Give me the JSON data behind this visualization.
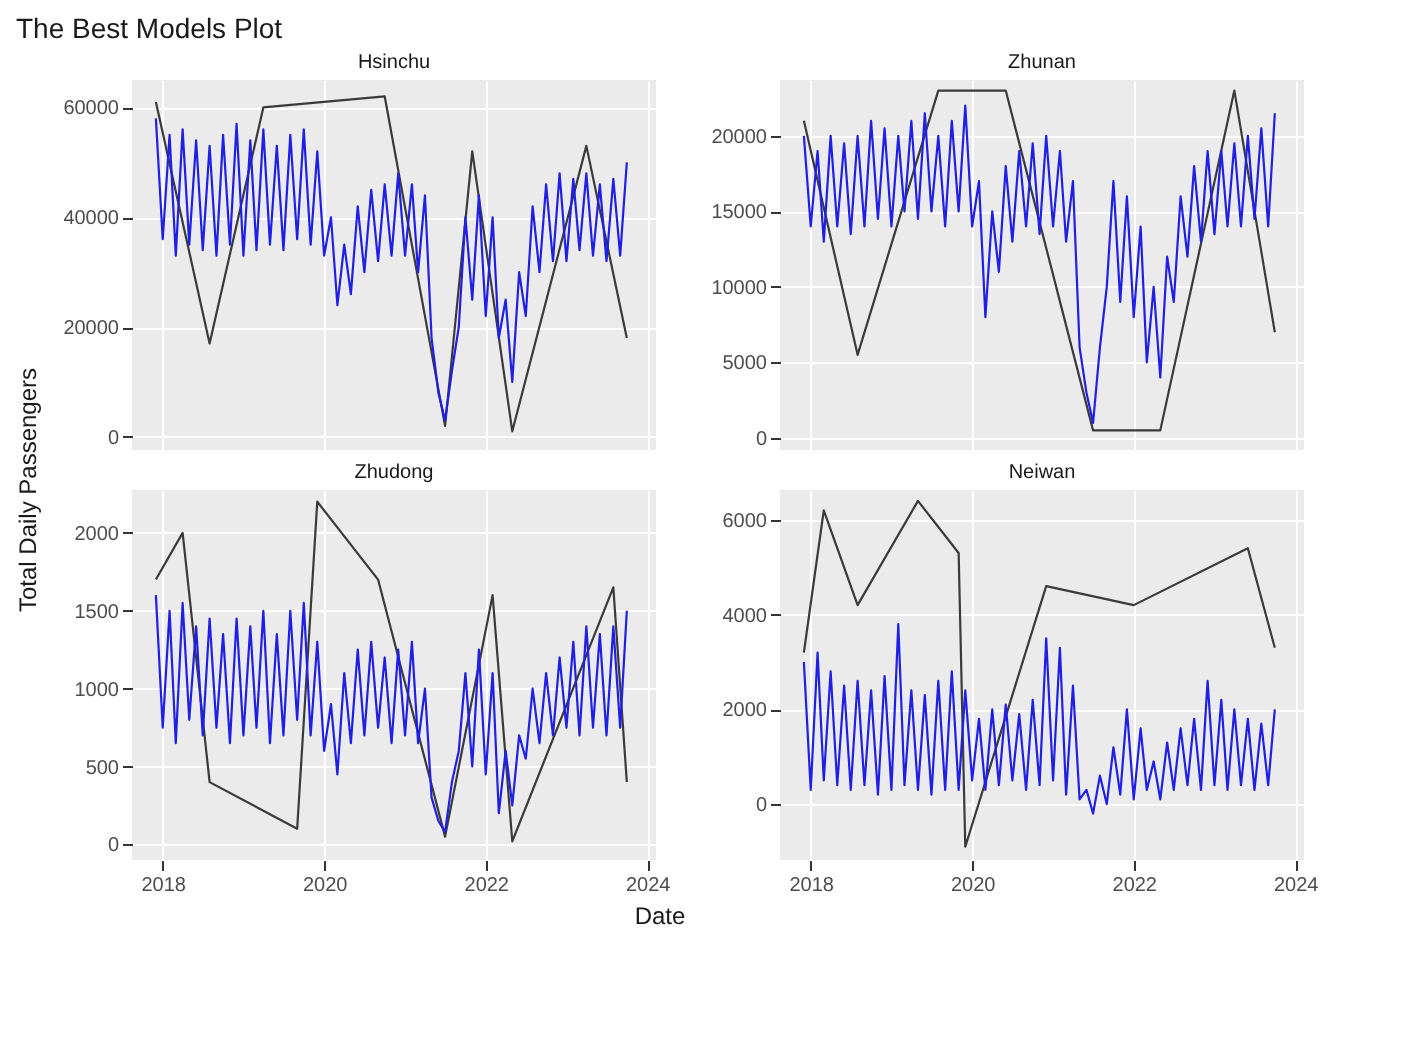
{
  "chart_data": [
    {
      "type": "line",
      "title": "The Best Models Plot",
      "subtitle": "Hsinchu",
      "ylabel": "Total Daily Passengers",
      "xlim": [
        "2017-08-15",
        "2024-02-10"
      ],
      "xticks": [
        {
          "value": "2018-01-01",
          "label": null
        },
        {
          "value": "2020-01-01",
          "label": null
        },
        {
          "value": "2022-01-01",
          "label": null
        },
        {
          "value": "2024-01-01",
          "label": null
        }
      ],
      "ylim": [
        -2400,
        65000
      ],
      "yticks": [
        0,
        20000,
        40000,
        60000
      ],
      "grid": true,
      "tick_labels": "y",
      "line_style": "solid",
      "marker": "none",
      "series": [
        {
          "color": "#3a3a3a",
          "x": [
            "2017-12",
            "2018-08",
            "2019-04",
            "2020-10",
            "2021-07",
            "2021-11",
            "2022-05",
            "2023-04",
            "2023-10"
          ],
          "values": [
            61000,
            17000,
            60000,
            62000,
            2000,
            52000,
            1000,
            53000,
            18000
          ]
        },
        {
          "color": "#1f1fe6",
          "values": [
            58000,
            36000,
            55000,
            33000,
            56000,
            35000,
            54000,
            34000,
            53000,
            33000,
            55000,
            35000,
            57000,
            33000,
            54000,
            34000,
            56000,
            35000,
            53000,
            34000,
            55000,
            36000,
            56000,
            35000,
            52000,
            33000,
            40000,
            24000,
            35000,
            26000,
            42000,
            30000,
            45000,
            32000,
            46000,
            33000,
            48000,
            33000,
            46000,
            30000,
            44000,
            18000,
            8000,
            3000,
            12000,
            20000,
            40000,
            25000,
            44000,
            22000,
            40000,
            18000,
            25000,
            10000,
            30000,
            22000,
            42000,
            30000,
            46000,
            32000,
            48000,
            32000,
            47000,
            34000,
            48000,
            33000,
            46000,
            32000,
            47000,
            33000,
            50000
          ]
        }
      ],
      "x": [
        "2017-12",
        "2018-01",
        "2018-02",
        "2018-03",
        "2018-04",
        "2018-05",
        "2018-06",
        "2018-07",
        "2018-08",
        "2018-09",
        "2018-10",
        "2018-11",
        "2018-12",
        "2019-01",
        "2019-02",
        "2019-03",
        "2019-04",
        "2019-05",
        "2019-06",
        "2019-07",
        "2019-08",
        "2019-09",
        "2019-10",
        "2019-11",
        "2019-12",
        "2020-01",
        "2020-02",
        "2020-03",
        "2020-04",
        "2020-05",
        "2020-06",
        "2020-07",
        "2020-08",
        "2020-09",
        "2020-10",
        "2020-11",
        "2020-12",
        "2021-01",
        "2021-02",
        "2021-03",
        "2021-04",
        "2021-05",
        "2021-06",
        "2021-07",
        "2021-08",
        "2021-09",
        "2021-10",
        "2021-11",
        "2021-12",
        "2022-01",
        "2022-02",
        "2022-03",
        "2022-04",
        "2022-05",
        "2022-06",
        "2022-07",
        "2022-08",
        "2022-09",
        "2022-10",
        "2022-11",
        "2022-12",
        "2023-01",
        "2023-02",
        "2023-03",
        "2023-04",
        "2023-05",
        "2023-06",
        "2023-07",
        "2023-08",
        "2023-09",
        "2023-10"
      ]
    },
    {
      "type": "line",
      "subtitle": "Zhunan",
      "xlim": [
        "2017-08-15",
        "2024-02-10"
      ],
      "xticks": [
        {
          "value": "2018-01-01",
          "label": null
        },
        {
          "value": "2020-01-01",
          "label": null
        },
        {
          "value": "2022-01-01",
          "label": null
        },
        {
          "value": "2024-01-01",
          "label": null
        }
      ],
      "ylim": [
        -800,
        23700
      ],
      "yticks": [
        0,
        5000,
        10000,
        15000,
        20000
      ],
      "grid": true,
      "tick_labels": "y",
      "line_style": "solid",
      "marker": "none",
      "series": [
        {
          "color": "#3a3a3a",
          "x": [
            "2017-12",
            "2018-08",
            "2019-08",
            "2020-06",
            "2021-07",
            "2022-05",
            "2023-04",
            "2023-10"
          ],
          "values": [
            21000,
            5500,
            23000,
            23000,
            500,
            500,
            23000,
            7000
          ]
        },
        {
          "color": "#1f1fe6",
          "values": [
            20000,
            14000,
            19000,
            13000,
            20000,
            14000,
            19500,
            13500,
            20000,
            14000,
            21000,
            14500,
            20500,
            14000,
            20000,
            15000,
            21000,
            14500,
            21500,
            15000,
            20000,
            14000,
            21000,
            15000,
            22000,
            14000,
            17000,
            8000,
            15000,
            11000,
            18000,
            13000,
            19000,
            14000,
            19500,
            13500,
            20000,
            14000,
            19000,
            13000,
            17000,
            6000,
            3000,
            1000,
            6000,
            10000,
            17000,
            9000,
            16000,
            8000,
            14000,
            5000,
            10000,
            4000,
            12000,
            9000,
            16000,
            12000,
            18000,
            13000,
            19000,
            13500,
            19000,
            14000,
            19500,
            14000,
            20000,
            14500,
            20500,
            14000,
            21500
          ]
        }
      ],
      "x": [
        "2017-12",
        "2018-01",
        "2018-02",
        "2018-03",
        "2018-04",
        "2018-05",
        "2018-06",
        "2018-07",
        "2018-08",
        "2018-09",
        "2018-10",
        "2018-11",
        "2018-12",
        "2019-01",
        "2019-02",
        "2019-03",
        "2019-04",
        "2019-05",
        "2019-06",
        "2019-07",
        "2019-08",
        "2019-09",
        "2019-10",
        "2019-11",
        "2019-12",
        "2020-01",
        "2020-02",
        "2020-03",
        "2020-04",
        "2020-05",
        "2020-06",
        "2020-07",
        "2020-08",
        "2020-09",
        "2020-10",
        "2020-11",
        "2020-12",
        "2021-01",
        "2021-02",
        "2021-03",
        "2021-04",
        "2021-05",
        "2021-06",
        "2021-07",
        "2021-08",
        "2021-09",
        "2021-10",
        "2021-11",
        "2021-12",
        "2022-01",
        "2022-02",
        "2022-03",
        "2022-04",
        "2022-05",
        "2022-06",
        "2022-07",
        "2022-08",
        "2022-09",
        "2022-10",
        "2022-11",
        "2022-12",
        "2023-01",
        "2023-02",
        "2023-03",
        "2023-04",
        "2023-05",
        "2023-06",
        "2023-07",
        "2023-08",
        "2023-09",
        "2023-10"
      ]
    },
    {
      "type": "line",
      "subtitle": "Zhudong",
      "xlabel": "Date",
      "xlim": [
        "2017-08-15",
        "2024-02-10"
      ],
      "xticks": [
        {
          "value": "2018-01-01",
          "label": "2018"
        },
        {
          "value": "2020-01-01",
          "label": "2020"
        },
        {
          "value": "2022-01-01",
          "label": "2022"
        },
        {
          "value": "2024-01-01",
          "label": "2024"
        }
      ],
      "ylim": [
        -100,
        2275
      ],
      "yticks": [
        0,
        500,
        1000,
        1500,
        2000
      ],
      "grid": true,
      "line_style": "solid",
      "marker": "none",
      "series": [
        {
          "color": "#3a3a3a",
          "x": [
            "2017-12",
            "2018-04",
            "2018-08",
            "2019-09",
            "2019-12",
            "2020-09",
            "2021-07",
            "2022-02",
            "2022-05",
            "2023-08",
            "2023-10"
          ],
          "values": [
            1700,
            2000,
            400,
            100,
            2200,
            1700,
            50,
            1600,
            20,
            1650,
            400
          ]
        },
        {
          "color": "#1f1fe6",
          "values": [
            1600,
            750,
            1500,
            650,
            1550,
            800,
            1400,
            700,
            1450,
            750,
            1350,
            650,
            1450,
            700,
            1400,
            750,
            1500,
            650,
            1350,
            700,
            1500,
            800,
            1550,
            700,
            1300,
            600,
            900,
            450,
            1100,
            650,
            1250,
            700,
            1300,
            750,
            1200,
            650,
            1250,
            700,
            1300,
            650,
            1000,
            300,
            150,
            80,
            400,
            600,
            1100,
            500,
            1250,
            450,
            1100,
            200,
            600,
            250,
            700,
            550,
            1000,
            650,
            1100,
            700,
            1200,
            750,
            1300,
            700,
            1400,
            750,
            1350,
            700,
            1400,
            750,
            1500
          ]
        }
      ],
      "x": [
        "2017-12",
        "2018-01",
        "2018-02",
        "2018-03",
        "2018-04",
        "2018-05",
        "2018-06",
        "2018-07",
        "2018-08",
        "2018-09",
        "2018-10",
        "2018-11",
        "2018-12",
        "2019-01",
        "2019-02",
        "2019-03",
        "2019-04",
        "2019-05",
        "2019-06",
        "2019-07",
        "2019-08",
        "2019-09",
        "2019-10",
        "2019-11",
        "2019-12",
        "2020-01",
        "2020-02",
        "2020-03",
        "2020-04",
        "2020-05",
        "2020-06",
        "2020-07",
        "2020-08",
        "2020-09",
        "2020-10",
        "2020-11",
        "2020-12",
        "2021-01",
        "2021-02",
        "2021-03",
        "2021-04",
        "2021-05",
        "2021-06",
        "2021-07",
        "2021-08",
        "2021-09",
        "2021-10",
        "2021-11",
        "2021-12",
        "2022-01",
        "2022-02",
        "2022-03",
        "2022-04",
        "2022-05",
        "2022-06",
        "2022-07",
        "2022-08",
        "2022-09",
        "2022-10",
        "2022-11",
        "2022-12",
        "2023-01",
        "2023-02",
        "2023-03",
        "2023-04",
        "2023-05",
        "2023-06",
        "2023-07",
        "2023-08",
        "2023-09",
        "2023-10"
      ]
    },
    {
      "type": "line",
      "subtitle": "Neiwan",
      "xlim": [
        "2017-08-15",
        "2024-02-10"
      ],
      "xticks": [
        {
          "value": "2018-01-01",
          "label": "2018"
        },
        {
          "value": "2020-01-01",
          "label": "2020"
        },
        {
          "value": "2022-01-01",
          "label": "2022"
        },
        {
          "value": "2024-01-01",
          "label": "2024"
        }
      ],
      "ylim": [
        -1180,
        6630
      ],
      "yticks": [
        0,
        2000,
        4000,
        6000
      ],
      "grid": true,
      "line_style": "solid",
      "marker": "none",
      "series": [
        {
          "color": "#3a3a3a",
          "x": [
            "2017-12",
            "2018-03",
            "2018-08",
            "2019-05",
            "2019-11",
            "2019-12",
            "2020-12",
            "2022-01",
            "2023-06",
            "2023-10"
          ],
          "values": [
            3200,
            6200,
            4200,
            6400,
            5300,
            -900,
            4600,
            4200,
            5400,
            3300
          ]
        },
        {
          "color": "#1f1fe6",
          "values": [
            3000,
            300,
            3200,
            500,
            2800,
            400,
            2500,
            300,
            2600,
            400,
            2400,
            200,
            2700,
            300,
            3800,
            400,
            2400,
            300,
            2300,
            200,
            2600,
            300,
            2800,
            300,
            2400,
            500,
            1800,
            300,
            2000,
            400,
            2100,
            500,
            1900,
            300,
            2200,
            400,
            3500,
            500,
            3300,
            200,
            2500,
            100,
            300,
            -200,
            600,
            0,
            1200,
            200,
            2000,
            100,
            1600,
            300,
            900,
            100,
            1300,
            300,
            1600,
            400,
            1800,
            300,
            2600,
            400,
            2200,
            300,
            2000,
            400,
            1800,
            300,
            1700,
            400,
            2000
          ]
        }
      ],
      "x": [
        "2017-12",
        "2018-01",
        "2018-02",
        "2018-03",
        "2018-04",
        "2018-05",
        "2018-06",
        "2018-07",
        "2018-08",
        "2018-09",
        "2018-10",
        "2018-11",
        "2018-12",
        "2019-01",
        "2019-02",
        "2019-03",
        "2019-04",
        "2019-05",
        "2019-06",
        "2019-07",
        "2019-08",
        "2019-09",
        "2019-10",
        "2019-11",
        "2019-12",
        "2020-01",
        "2020-02",
        "2020-03",
        "2020-04",
        "2020-05",
        "2020-06",
        "2020-07",
        "2020-08",
        "2020-09",
        "2020-10",
        "2020-11",
        "2020-12",
        "2021-01",
        "2021-02",
        "2021-03",
        "2021-04",
        "2021-05",
        "2021-06",
        "2021-07",
        "2021-08",
        "2021-09",
        "2021-10",
        "2021-11",
        "2021-12",
        "2022-01",
        "2022-02",
        "2022-03",
        "2022-04",
        "2022-05",
        "2022-06",
        "2022-07",
        "2022-08",
        "2022-09",
        "2022-10",
        "2022-11",
        "2022-12",
        "2023-01",
        "2023-02",
        "2023-03",
        "2023-04",
        "2023-05",
        "2023-06",
        "2023-07",
        "2023-08",
        "2023-09",
        "2023-10"
      ]
    }
  ]
}
